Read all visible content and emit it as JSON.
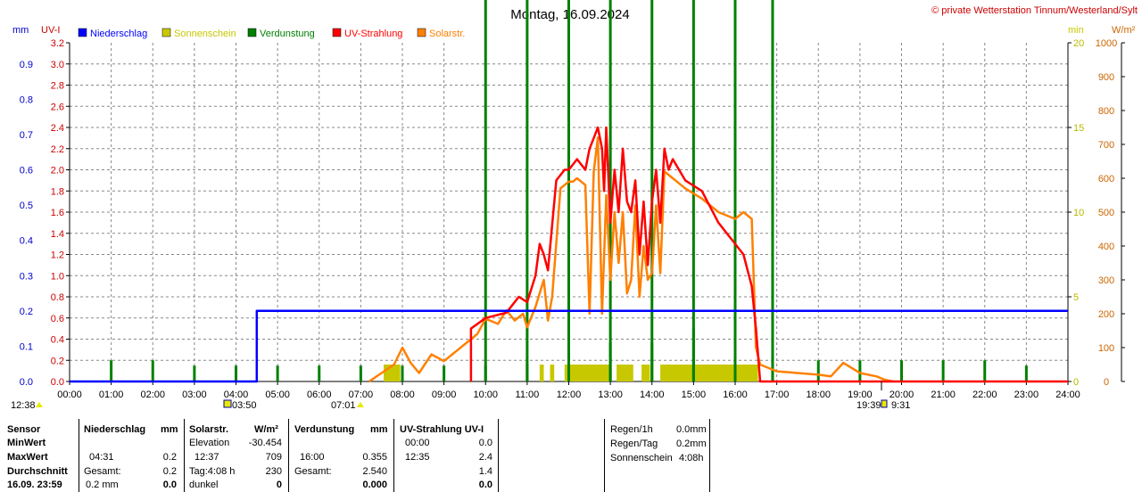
{
  "title": "Montag, 16.09.2024",
  "copyright": "© private Wetterstation Tinnum/Westerland/Sylt",
  "units": {
    "mm": "mm",
    "uvi": "UV-I",
    "min": "min",
    "wm2": "W/m²"
  },
  "legend": [
    {
      "label": "Niederschlag",
      "color": "#0000ff"
    },
    {
      "label": "Sonnenschein",
      "color": "#c8c800"
    },
    {
      "label": "Verdunstung",
      "color": "#008000"
    },
    {
      "label": "UV-Strahlung",
      "color": "#ff0000"
    },
    {
      "label": "Solarstr.",
      "color": "#ff8000"
    }
  ],
  "chart_data": {
    "type": "line",
    "x_ticks": [
      "00:00",
      "01:00",
      "02:00",
      "03:00",
      "04:00",
      "05:00",
      "06:00",
      "07:00",
      "08:00",
      "09:00",
      "10:00",
      "11:00",
      "12:00",
      "13:00",
      "14:00",
      "15:00",
      "16:00",
      "17:00",
      "18:00",
      "19:00",
      "20:00",
      "21:00",
      "22:00",
      "23:00",
      "24:00"
    ],
    "axis_mm": {
      "label": "mm",
      "ticks": [
        "0.0",
        "0.1",
        "0.2",
        "0.3",
        "0.4",
        "0.5",
        "0.6",
        "0.7",
        "0.8",
        "0.9"
      ],
      "ylim": [
        0,
        0.96
      ]
    },
    "axis_uvi": {
      "label": "UV-I",
      "ticks": [
        "0.0",
        "0.2",
        "0.4",
        "0.6",
        "0.8",
        "1.0",
        "1.2",
        "1.4",
        "1.6",
        "1.8",
        "2.0",
        "2.2",
        "2.4",
        "2.6",
        "2.8",
        "3.0",
        "3.2"
      ],
      "ylim": [
        0,
        3.2
      ]
    },
    "axis_min": {
      "label": "min",
      "ticks": [
        "0",
        "5",
        "10",
        "15",
        "20"
      ],
      "ylim": [
        0,
        20
      ]
    },
    "axis_wm2": {
      "label": "W/m²",
      "ticks": [
        "0",
        "100",
        "200",
        "300",
        "400",
        "500",
        "600",
        "700",
        "800",
        "900",
        "1000"
      ],
      "ylim": [
        0,
        1000
      ]
    },
    "series": [
      {
        "name": "Niederschlag",
        "axis": "mm",
        "color": "#0000ff",
        "points": [
          [
            0,
            0
          ],
          [
            4.5,
            0
          ],
          [
            4.5,
            0.2
          ],
          [
            24,
            0.2
          ]
        ]
      },
      {
        "name": "UV-Strahlung",
        "axis": "uvi",
        "color": "#ff0000",
        "points": [
          [
            9.65,
            0
          ],
          [
            9.65,
            0.5
          ],
          [
            10.0,
            0.6
          ],
          [
            10.5,
            0.65
          ],
          [
            10.8,
            0.8
          ],
          [
            11.0,
            0.75
          ],
          [
            11.2,
            1.0
          ],
          [
            11.3,
            1.3
          ],
          [
            11.4,
            1.2
          ],
          [
            11.5,
            1.05
          ],
          [
            11.7,
            1.9
          ],
          [
            11.9,
            2.0
          ],
          [
            12.0,
            2.0
          ],
          [
            12.2,
            2.1
          ],
          [
            12.4,
            2.0
          ],
          [
            12.5,
            2.2
          ],
          [
            12.6,
            2.3
          ],
          [
            12.7,
            2.4
          ],
          [
            12.8,
            2.2
          ],
          [
            12.85,
            1.8
          ],
          [
            12.9,
            2.4
          ],
          [
            13.0,
            1.5
          ],
          [
            13.1,
            2.0
          ],
          [
            13.2,
            1.6
          ],
          [
            13.3,
            2.2
          ],
          [
            13.4,
            1.7
          ],
          [
            13.5,
            1.6
          ],
          [
            13.6,
            1.9
          ],
          [
            13.7,
            1.2
          ],
          [
            13.8,
            1.7
          ],
          [
            13.9,
            1.1
          ],
          [
            14.0,
            1.7
          ],
          [
            14.1,
            2.0
          ],
          [
            14.2,
            1.5
          ],
          [
            14.3,
            2.2
          ],
          [
            14.4,
            2.0
          ],
          [
            14.5,
            2.1
          ],
          [
            14.8,
            1.9
          ],
          [
            15.2,
            1.8
          ],
          [
            15.6,
            1.5
          ],
          [
            16.0,
            1.3
          ],
          [
            16.2,
            1.2
          ],
          [
            16.4,
            0.9
          ],
          [
            16.5,
            0.5
          ],
          [
            16.6,
            0
          ],
          [
            24,
            0
          ]
        ]
      },
      {
        "name": "Solarstr.",
        "axis": "wm2",
        "color": "#ff8000",
        "points": [
          [
            7.2,
            0
          ],
          [
            7.5,
            25
          ],
          [
            7.8,
            50
          ],
          [
            8.0,
            100
          ],
          [
            8.2,
            55
          ],
          [
            8.4,
            25
          ],
          [
            8.7,
            80
          ],
          [
            9.0,
            60
          ],
          [
            9.3,
            90
          ],
          [
            9.6,
            120
          ],
          [
            9.8,
            140
          ],
          [
            10.0,
            185
          ],
          [
            10.3,
            170
          ],
          [
            10.5,
            210
          ],
          [
            10.7,
            180
          ],
          [
            10.9,
            200
          ],
          [
            11.0,
            160
          ],
          [
            11.2,
            220
          ],
          [
            11.4,
            300
          ],
          [
            11.5,
            180
          ],
          [
            11.6,
            250
          ],
          [
            11.8,
            570
          ],
          [
            12.0,
            590
          ],
          [
            12.1,
            590
          ],
          [
            12.2,
            600
          ],
          [
            12.4,
            580
          ],
          [
            12.5,
            200
          ],
          [
            12.6,
            620
          ],
          [
            12.7,
            720
          ],
          [
            12.8,
            200
          ],
          [
            12.9,
            550
          ],
          [
            13.0,
            300
          ],
          [
            13.1,
            500
          ],
          [
            13.2,
            350
          ],
          [
            13.3,
            500
          ],
          [
            13.4,
            260
          ],
          [
            13.5,
            300
          ],
          [
            13.6,
            520
          ],
          [
            13.7,
            250
          ],
          [
            13.8,
            400
          ],
          [
            13.9,
            300
          ],
          [
            14.0,
            320
          ],
          [
            14.1,
            520
          ],
          [
            14.2,
            320
          ],
          [
            14.3,
            620
          ],
          [
            14.5,
            600
          ],
          [
            14.8,
            570
          ],
          [
            15.2,
            540
          ],
          [
            15.6,
            500
          ],
          [
            16.0,
            480
          ],
          [
            16.2,
            500
          ],
          [
            16.4,
            480
          ],
          [
            16.5,
            100
          ],
          [
            16.6,
            50
          ],
          [
            17.0,
            30
          ],
          [
            17.5,
            25
          ],
          [
            18.0,
            20
          ],
          [
            18.3,
            15
          ],
          [
            18.6,
            55
          ],
          [
            18.8,
            40
          ],
          [
            19.0,
            25
          ],
          [
            19.4,
            15
          ],
          [
            19.6,
            5
          ],
          [
            19.8,
            0
          ]
        ]
      }
    ],
    "sunshine_bars": [
      [
        11.3,
        11.4
      ],
      [
        11.55,
        11.65
      ],
      [
        11.9,
        13.0
      ],
      [
        13.15,
        13.55
      ],
      [
        13.75,
        13.95
      ],
      [
        14.2,
        16.55
      ],
      [
        7.55,
        7.95
      ]
    ],
    "evaporation_bars": [
      [
        1.0,
        0.2
      ],
      [
        2.0,
        0.2
      ],
      [
        3.0,
        0.15
      ],
      [
        4.0,
        0.15
      ],
      [
        5.0,
        0.15
      ],
      [
        6.0,
        0.15
      ],
      [
        7.0,
        0.15
      ],
      [
        8.0,
        0.15
      ],
      [
        9.0,
        0.15
      ],
      [
        10.0,
        0.15
      ],
      [
        11.0,
        0.17
      ],
      [
        12.0,
        0.37
      ],
      [
        13.0,
        0.37
      ],
      [
        14.0,
        0.37
      ],
      [
        15.0,
        0.5
      ],
      [
        16.0,
        0.45
      ],
      [
        16.9,
        0.25
      ],
      [
        18.0,
        0.2
      ],
      [
        19.0,
        0.2
      ],
      [
        20.0,
        0.2
      ],
      [
        21.0,
        0.2
      ],
      [
        22.0,
        0.2
      ],
      [
        23.0,
        0.15
      ]
    ],
    "evaporation_tall": [
      [
        10.0,
        0.35
      ],
      [
        11.0,
        0.5
      ],
      [
        12.0,
        0.35
      ],
      [
        13.0,
        0.4
      ],
      [
        14.0,
        0.4
      ],
      [
        15.0,
        0.6
      ],
      [
        16.0,
        0.7
      ],
      [
        16.9,
        0.35
      ]
    ]
  },
  "sun_markers": {
    "twilight_am": "12:38",
    "sunrise": "03:50",
    "rise_time": "07:01",
    "sunset": "19:39",
    "daylen": "9:31"
  },
  "stats": {
    "col1": {
      "r1": "Sensor",
      "r2": "MinWert",
      "r3": "MaxWert",
      "r4": "Durchschnitt",
      "r5": "16.09. 23:59"
    },
    "niederschlag": {
      "head": "Niederschlag",
      "unit": "mm",
      "max_time": "04:31",
      "max_val": "0.2",
      "gesamt_label": "Gesamt:",
      "gesamt_val": "0.2",
      "r5a": "0.2 mm",
      "r5b": "0.0"
    },
    "solar": {
      "head": "Solarstr.",
      "unit": "W/m²",
      "elev_label": "Elevation",
      "elev_val": "-30.454",
      "max_time": "12:37",
      "max_val": "709",
      "tag_label": "Tag:4:08 h",
      "tag_val": "230",
      "r5a": "dunkel",
      "r5b": "0"
    },
    "verdunstung": {
      "head": "Verdunstung",
      "unit": "mm",
      "max_time": "16:00",
      "max_val": "0.355",
      "gesamt_label": "Gesamt:",
      "gesamt_val": "2.540",
      "r5b": "0.000"
    },
    "uv": {
      "head": "UV-Strahlung UV-I",
      "min_time": "00:00",
      "min_val": "0.0",
      "max_time": "12:35",
      "max_val": "2.4",
      "avg_val": "1.4",
      "r5b": "0.0"
    },
    "extra": {
      "regen1h_label": "Regen/1h",
      "regen1h_val": "0.0mm",
      "regentag_label": "Regen/Tag",
      "regentag_val": "0.2mm",
      "sonne_label": "Sonnenschein",
      "sonne_val": "4:08h"
    }
  }
}
